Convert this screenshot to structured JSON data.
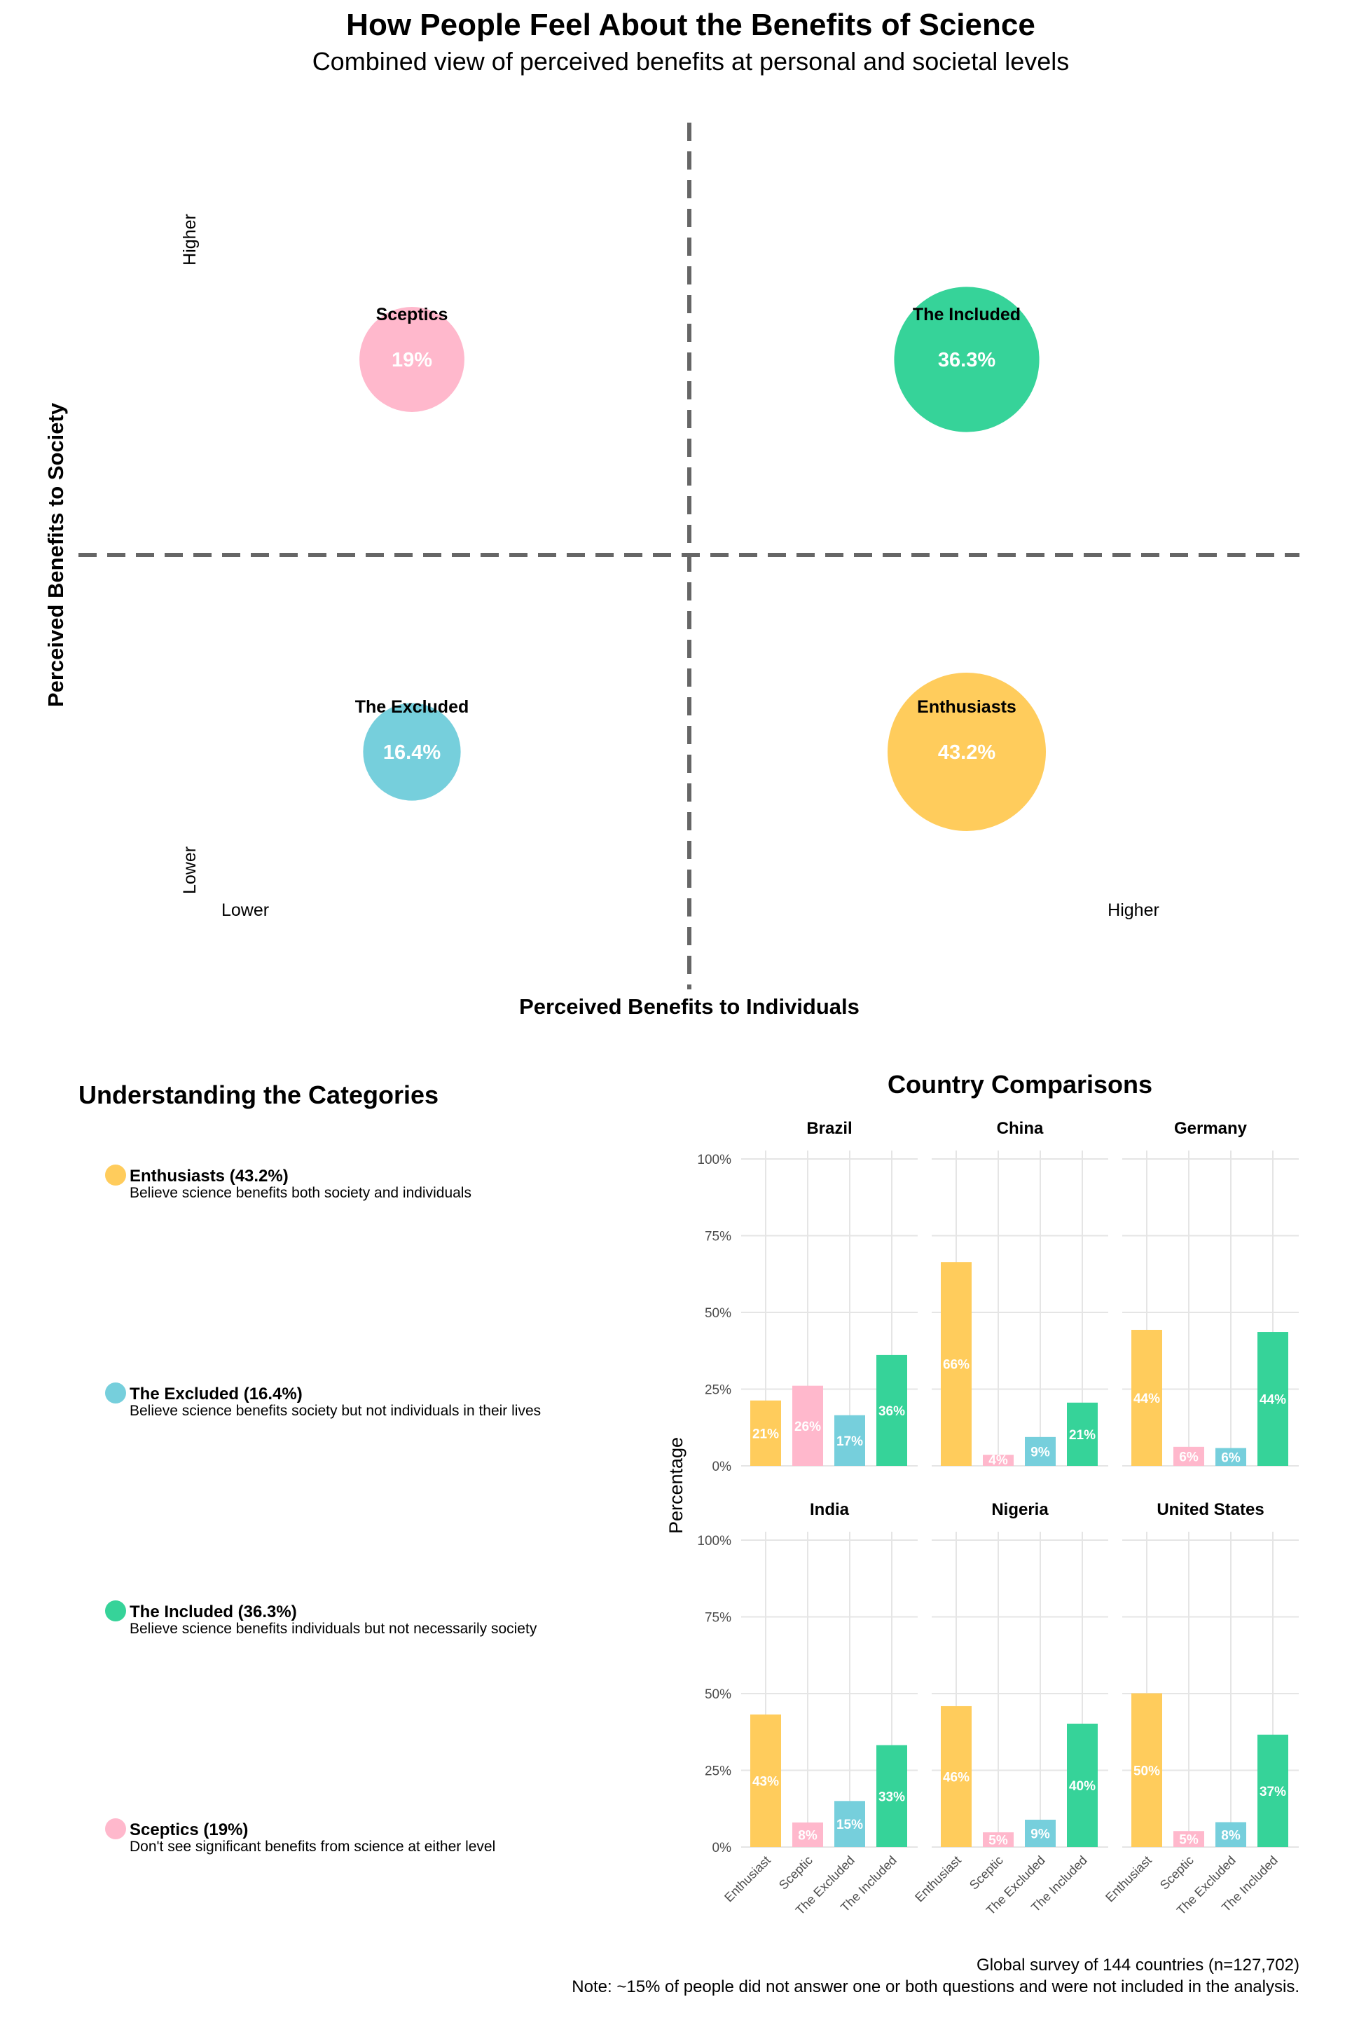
{
  "header": {
    "title": "How People Feel About the Benefits of Science",
    "subtitle": "Combined view of perceived benefits at personal and societal levels"
  },
  "colors": {
    "Enthusiasts": "#FFCC5C",
    "The Excluded": "#76CFDC",
    "The Included": "#36D399",
    "Sceptics": "#FFB8CC",
    "grid": "#e5e5e5",
    "divider": "#666666"
  },
  "chart_data": [
    {
      "type": "scatter",
      "xlabel": "Perceived Benefits to Individuals",
      "ylabel": "Perceived Benefits to Society",
      "x_tick_labels": [
        "Lower",
        "Higher"
      ],
      "y_tick_labels": [
        "Lower",
        "Higher"
      ],
      "points": [
        {
          "name": "Sceptics",
          "label": "Sceptics",
          "value_label": "19%",
          "x": 0,
          "y": 1,
          "value": 19
        },
        {
          "name": "The Included",
          "label": "The Included",
          "value_label": "36.3%",
          "x": 1,
          "y": 1,
          "value": 36.3
        },
        {
          "name": "The Excluded",
          "label": "The Excluded",
          "value_label": "16.4%",
          "x": 0,
          "y": 0,
          "value": 16.4
        },
        {
          "name": "Enthusiasts",
          "label": "Enthusiasts",
          "value_label": "43.2%",
          "x": 1,
          "y": 0,
          "value": 43.2
        }
      ]
    },
    {
      "type": "bar",
      "title": "Country Comparisons",
      "ylabel": "Percentage",
      "ylim": [
        0,
        100
      ],
      "y_ticks": [
        0,
        25,
        50,
        75,
        100
      ],
      "y_tick_labels": [
        "0%",
        "25%",
        "50%",
        "75%",
        "100%"
      ],
      "categories": [
        "Enthusiast",
        "Sceptic",
        "The Excluded",
        "The Included"
      ],
      "facets": [
        {
          "name": "Brazil",
          "values": [
            21.3,
            26.1,
            16.5,
            36.1
          ],
          "labels": [
            "21%",
            "26%",
            "17%",
            "36%"
          ]
        },
        {
          "name": "China",
          "values": [
            66.4,
            3.6,
            9.4,
            20.6
          ],
          "labels": [
            "66%",
            "4%",
            "9%",
            "21%"
          ]
        },
        {
          "name": "Germany",
          "values": [
            44.3,
            6.2,
            5.8,
            43.6
          ],
          "labels": [
            "44%",
            "6%",
            "6%",
            "44%"
          ]
        },
        {
          "name": "India",
          "values": [
            43.2,
            8.0,
            15.0,
            33.2
          ],
          "labels": [
            "43%",
            "8%",
            "15%",
            "33%"
          ]
        },
        {
          "name": "Nigeria",
          "values": [
            45.9,
            4.8,
            8.9,
            40.2
          ],
          "labels": [
            "46%",
            "5%",
            "9%",
            "40%"
          ]
        },
        {
          "name": "United States",
          "values": [
            50.1,
            5.2,
            8.1,
            36.6
          ],
          "labels": [
            "50%",
            "5%",
            "8%",
            "37%"
          ]
        }
      ]
    }
  ],
  "legend": {
    "title": "Understanding the Categories",
    "items": [
      {
        "key": "Enthusiasts",
        "name": "Enthusiasts (43.2%)",
        "description": "Believe science benefits both society and individuals"
      },
      {
        "key": "The Excluded",
        "name": "The Excluded (16.4%)",
        "description": "Believe science benefits society but not individuals in their lives"
      },
      {
        "key": "The Included",
        "name": "The Included (36.3%)",
        "description": "Believe science benefits individuals but not necessarily society"
      },
      {
        "key": "Sceptics",
        "name": "Sceptics (19%)",
        "description": "Don't see significant benefits from science at either level"
      }
    ]
  },
  "caption": {
    "line1": "Global survey of 144 countries (n=127,702)",
    "line2": "Note: ~15% of people did not answer one or both questions and were not included in the analysis."
  }
}
